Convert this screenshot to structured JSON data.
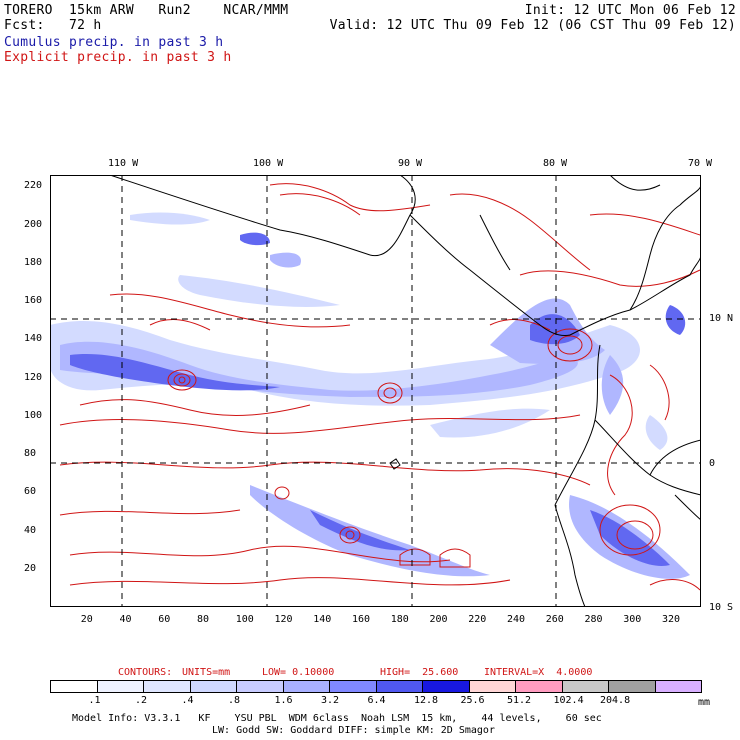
{
  "header": {
    "left_line1": "TORERO  15km ARW   Run2    NCAR/MMM",
    "left_line2": "Fcst:   72 h",
    "right_line1": "Init: 12 UTC Mon 06 Feb 12",
    "right_line2": "Valid: 12 UTC Thu 09 Feb 12 (06 CST Thu 09 Feb 12)",
    "legend_cumulus": "Cumulus precip. in past 3 h",
    "legend_explicit": "Explicit precip. in past 3 h"
  },
  "colors": {
    "cumulus": "#1a1aa8",
    "explicit": "#d01515",
    "coast": "#000000",
    "scale": [
      "#ffffff",
      "#eef2ff",
      "#dfe6ff",
      "#cfd8ff",
      "#c8ccff",
      "#a8b0ff",
      "#8088ff",
      "#5058f0",
      "#1818e0",
      "#ffd6d6",
      "#ff9cc0",
      "#c8c8c8",
      "#a0a0a0",
      "#d8b0ff"
    ]
  },
  "map": {
    "top_lon_labels": [
      "110 W",
      "100 W",
      "90 W",
      "80 W",
      "70 W"
    ],
    "right_lat_labels": [
      "10 N",
      "0",
      "10 S"
    ],
    "left_y_ticks": [
      "220",
      "200",
      "180",
      "160",
      "140",
      "120",
      "100",
      "80",
      "60",
      "40",
      "20"
    ],
    "bottom_x_ticks": [
      "20",
      "40",
      "60",
      "80",
      "100",
      "120",
      "140",
      "160",
      "180",
      "200",
      "220",
      "240",
      "260",
      "280",
      "300",
      "320"
    ]
  },
  "contours": {
    "label": "CONTOURS:",
    "units": "UNITS=mm",
    "low": "LOW= 0.10000",
    "high": "HIGH=  25.600",
    "interval": "INTERVAL=X  4.0000"
  },
  "colorbar": {
    "labels": [
      ".1",
      ".2",
      ".4",
      ".8",
      "1.6",
      "3.2",
      "6.4",
      "12.8",
      "25.6",
      "51.2",
      "102.4",
      "204.8"
    ],
    "unit": "mm"
  },
  "footer": {
    "line1": "Model Info: V3.3.1   KF    YSU PBL  WDM 6class  Noah LSM  15 km,    44 levels,    60 sec",
    "line2": "LW: Godd SW: Goddard DIFF: simple KM: 2D Smagor"
  }
}
